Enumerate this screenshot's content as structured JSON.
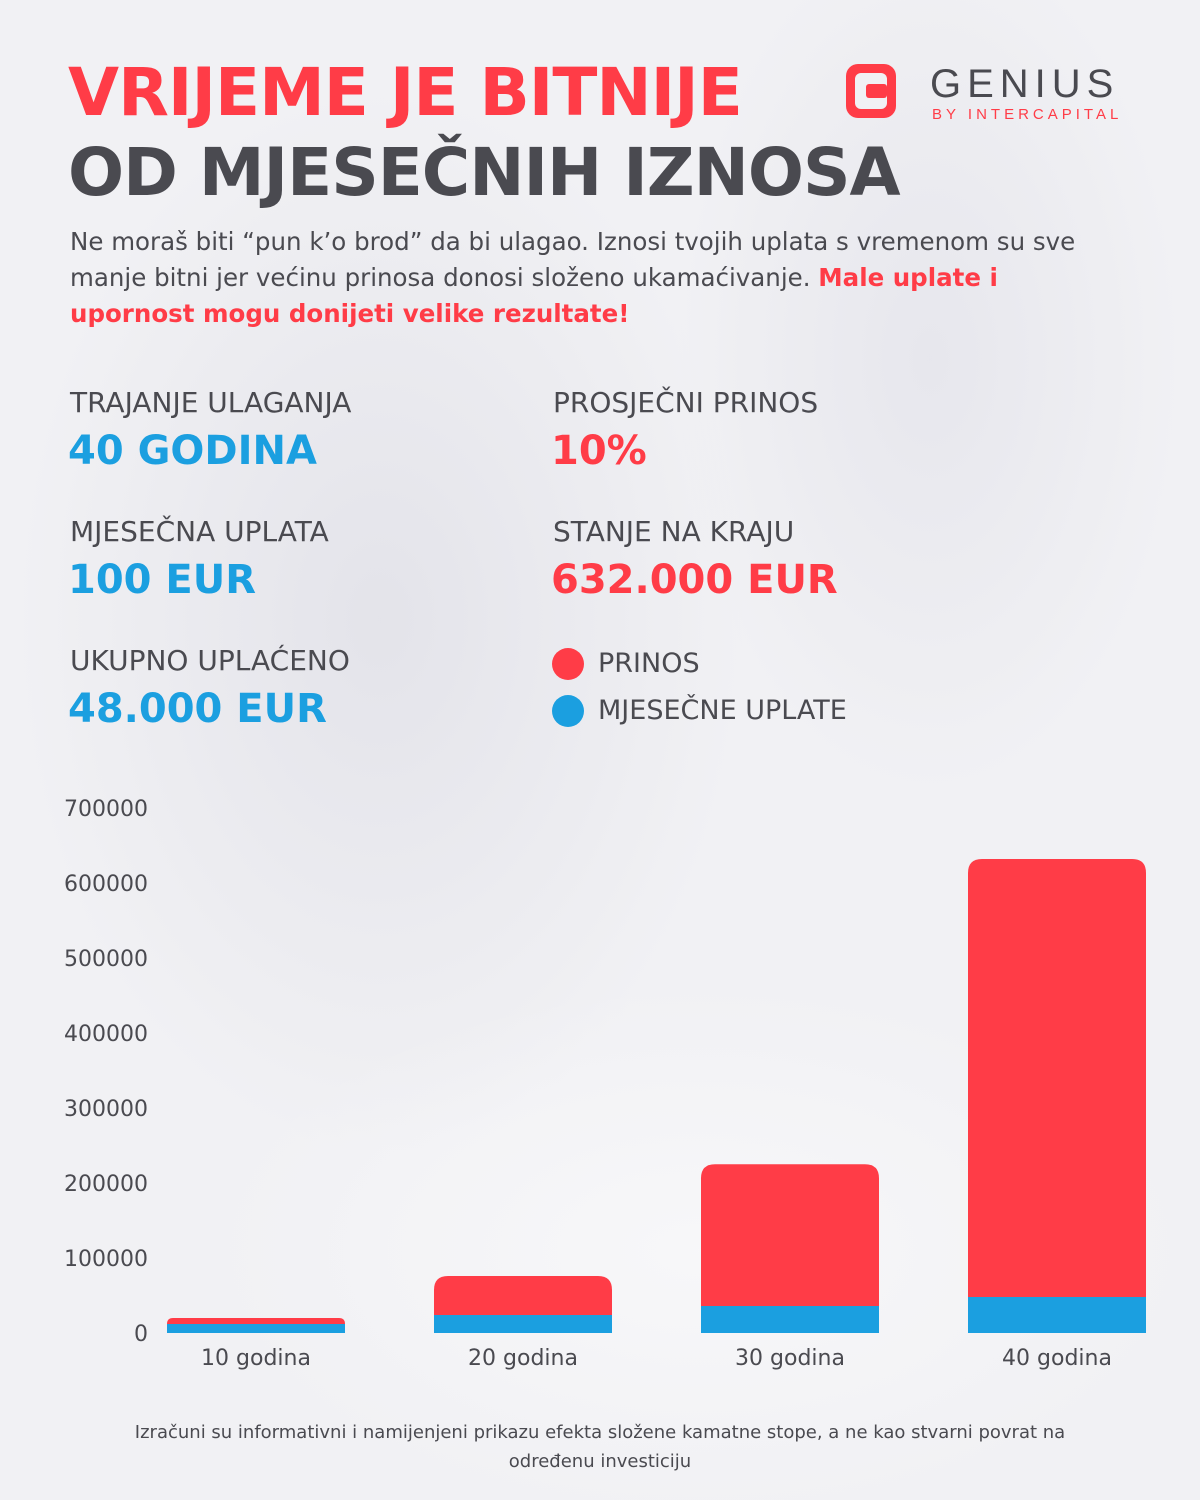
{
  "colors": {
    "red": "#ff3c47",
    "blue": "#1b9fe0",
    "text": "#4a4a50"
  },
  "header": {
    "title_line1": "VRIJEME JE BITNIJE",
    "title_line2": "OD MJESEČNIH IZNOSA",
    "logo_name": "GENIUS",
    "logo_sub": "BY INTERCAPITAL",
    "logo_icon": "genius-g-logo-icon"
  },
  "intro": {
    "text": "Ne moraš biti “pun k’o brod” da bi ulagao. Iznosi tvojih uplata s vremenom su sve manje bitni jer većinu prinosa donosi složeno ukamaćivanje. ",
    "highlight": "Male uplate i upornost mogu donijeti velike rezultate!"
  },
  "stats": {
    "duration": {
      "label": "TRAJANJE ULAGANJA",
      "value": "40 GODINA"
    },
    "monthly": {
      "label": "MJESEČNA UPLATA",
      "value": "100 EUR"
    },
    "total": {
      "label": "UKUPNO UPLAĆENO",
      "value": "48.000 EUR"
    },
    "return": {
      "label": "PROSJEČNI PRINOS",
      "value": "10%"
    },
    "final": {
      "label": "STANJE NA KRAJU",
      "value": "632.000 EUR"
    }
  },
  "legend": {
    "returns": "PRINOS",
    "contributions": "MJESEČNE UPLATE"
  },
  "chart_data": {
    "type": "bar",
    "stacked": true,
    "categories": [
      "10 godina",
      "20 godina",
      "30 godina",
      "40 godina"
    ],
    "series": [
      {
        "name": "MJESEČNE UPLATE",
        "color": "#1b9fe0",
        "values": [
          12000,
          24000,
          36000,
          48000
        ]
      },
      {
        "name": "PRINOS",
        "color": "#ff3c47",
        "values": [
          8000,
          52000,
          189000,
          584000
        ]
      }
    ],
    "yticks": [
      0,
      100000,
      200000,
      300000,
      400000,
      500000,
      600000,
      700000
    ],
    "ylim": [
      0,
      700000
    ],
    "grid": false,
    "legend_position": "top"
  },
  "footnote": "Izračuni su informativni i namijenjeni prikazu efekta složene kamatne stope, a ne kao stvarni povrat na određenu investiciju"
}
